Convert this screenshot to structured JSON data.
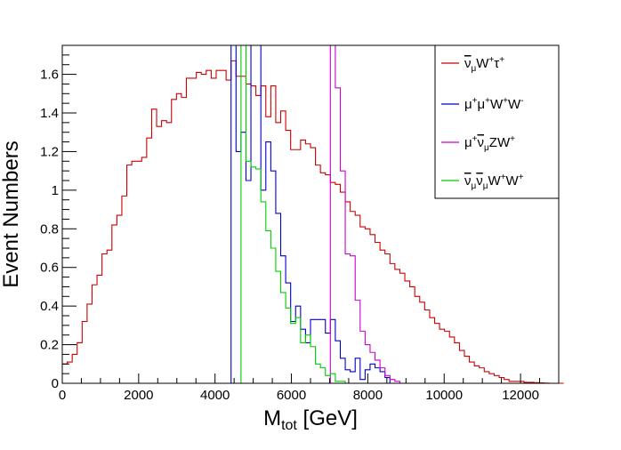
{
  "chart_data": {
    "type": "line",
    "style": "step-histogram",
    "title": "",
    "xlabel": "M",
    "xlabel_sub": "tot",
    "xlabel_unit": " [GeV]",
    "ylabel": "Event Numbers",
    "xlim": [
      0,
      13000
    ],
    "ylim": [
      0,
      1.75
    ],
    "x_ticks": [
      0,
      2000,
      4000,
      6000,
      8000,
      10000,
      12000
    ],
    "x_tick_labels": [
      "0",
      "2000",
      "4000",
      "6000",
      "8000",
      "10000",
      "12000"
    ],
    "y_ticks": [
      0,
      0.2,
      0.4,
      0.6,
      0.8,
      1.0,
      1.2,
      1.4,
      1.6
    ],
    "y_tick_labels": [
      "0",
      "0.2",
      "0.4",
      "0.6",
      "0.8",
      "1",
      "1.2",
      "1.4",
      "1.6"
    ],
    "bin_width": 130,
    "legend_position": "top-right",
    "series": [
      {
        "name": "ν̄μW⁺τ⁺",
        "color": "#cc0000",
        "legend_label": {
          "parts": [
            [
              "ν",
              "over"
            ],
            [
              "μ",
              "sub"
            ],
            [
              "W",
              ""
            ],
            [
              "+",
              "sup"
            ],
            [
              "τ",
              ""
            ],
            [
              "+",
              "sup"
            ]
          ]
        },
        "values": [
          0.1,
          0.11,
          0.15,
          0.21,
          0.32,
          0.41,
          0.51,
          0.56,
          0.67,
          0.69,
          0.82,
          0.87,
          0.97,
          1.13,
          1.15,
          1.15,
          1.17,
          1.27,
          1.42,
          1.33,
          1.36,
          1.35,
          1.47,
          1.5,
          1.48,
          1.58,
          1.58,
          1.61,
          1.6,
          1.62,
          1.58,
          1.62,
          1.62,
          1.57,
          1.67,
          1.59,
          1.59,
          1.55,
          1.54,
          1.49,
          1.54,
          1.38,
          1.54,
          1.35,
          1.41,
          1.31,
          1.21,
          1.21,
          1.26,
          1.24,
          1.22,
          1.13,
          1.09,
          1.08,
          1.04,
          1.03,
          0.99,
          0.94,
          0.89,
          0.87,
          0.81,
          0.8,
          0.77,
          0.73,
          0.69,
          0.67,
          0.62,
          0.59,
          0.57,
          0.53,
          0.5,
          0.45,
          0.42,
          0.38,
          0.34,
          0.31,
          0.28,
          0.27,
          0.24,
          0.21,
          0.17,
          0.14,
          0.11,
          0.09,
          0.08,
          0.06,
          0.05,
          0.04,
          0.03,
          0.02,
          0.01,
          0.01,
          0.01,
          0.005,
          0.005,
          0.003,
          0.002,
          0.001,
          0,
          0,
          0
        ],
        "start_x": 0
      },
      {
        "name": "μ⁺μ⁺W⁺W⁻",
        "color": "#0000cc",
        "legend_label": {
          "parts": [
            [
              "μ",
              ""
            ],
            [
              "+",
              "sup"
            ],
            [
              "μ",
              ""
            ],
            [
              "+",
              "sup"
            ],
            [
              "W",
              ""
            ],
            [
              "+",
              "sup"
            ],
            [
              "W",
              ""
            ],
            [
              "-",
              "sup"
            ]
          ]
        },
        "values": [
          1.8,
          1.2,
          1.3,
          1.05,
          1.8,
          1.9,
          1.0,
          1.25,
          1.1,
          0.88,
          0.66,
          0.52,
          0.32,
          0.4,
          0.28,
          0.21,
          0.33,
          0.33,
          0.33,
          0.26,
          0.33,
          0.22,
          0.13,
          0.07,
          0.06,
          0.13,
          0.02,
          0.07,
          0.1,
          0.08,
          0.06,
          0.03,
          0.0
        ],
        "start_x": 4420
      },
      {
        "name": "μ⁺ν̄μZW⁺",
        "color": "#cc00cc",
        "legend_label": {
          "parts": [
            [
              "μ",
              ""
            ],
            [
              "+",
              "sup"
            ],
            [
              "ν",
              "over"
            ],
            [
              "μ",
              "sub"
            ],
            [
              "Z",
              ""
            ],
            [
              "W",
              ""
            ],
            [
              "+",
              "sup"
            ]
          ]
        },
        "values": [
          1.8,
          1.53,
          1.1,
          0.67,
          0.66,
          0.43,
          0.27,
          0.2,
          0.16,
          0.12,
          0.08,
          0.04,
          0.02,
          0.01,
          0.0
        ],
        "start_x": 7020
      },
      {
        "name": "ν̄μν̄μW⁺W⁺",
        "color": "#00cc00",
        "legend_label": {
          "parts": [
            [
              "ν",
              "over"
            ],
            [
              "μ",
              "sub"
            ],
            [
              "ν",
              "over"
            ],
            [
              "μ",
              "sub"
            ],
            [
              "W",
              ""
            ],
            [
              "+",
              "sup"
            ],
            [
              "W",
              ""
            ],
            [
              "+",
              "sup"
            ]
          ]
        },
        "values": [
          1.85,
          1.15,
          1.12,
          1.11,
          0.94,
          0.79,
          0.7,
          0.58,
          0.47,
          0.39,
          0.31,
          0.34,
          0.21,
          0.25,
          0.19,
          0.1,
          0.08,
          0.04,
          0.05,
          0.01,
          0.01,
          0.0
        ],
        "start_x": 4680
      }
    ]
  }
}
